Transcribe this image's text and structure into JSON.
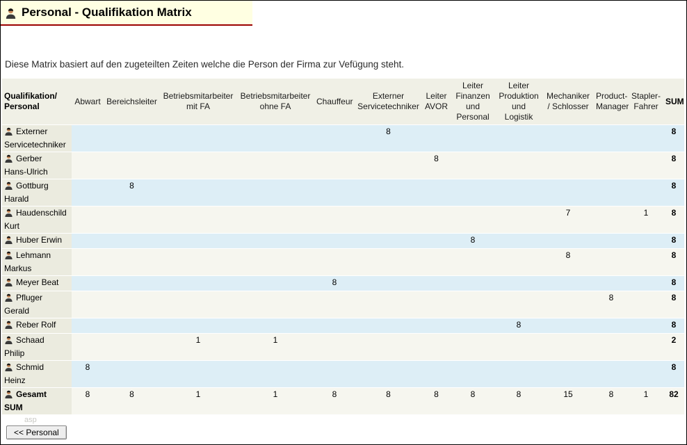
{
  "header": {
    "title": "Personal - Qualifikation Matrix"
  },
  "intro": {
    "text": "Diese Matrix basiert auf den zugeteilten Zeiten welche die Person der Firma zur Vefügung steht."
  },
  "table": {
    "corner_header": "Qualifikation/ Personal",
    "columns": [
      "Abwart",
      "Bereichsleiter",
      "Betriebsmitarbeiter mit FA",
      "Betriebsmitarbeiter ohne FA",
      "Chauffeur",
      "Externer Servicetechniker",
      "Leiter AVOR",
      "Leiter Finanzen und Personal",
      "Leiter Produktion und Logistik",
      "Mechaniker / Schlosser",
      "Product- Manager",
      "Stapler- Fahrer",
      "SUM"
    ],
    "rows": [
      {
        "name": "Externer\nServicetechniker",
        "values": [
          "",
          "",
          "",
          "",
          "",
          "8",
          "",
          "",
          "",
          "",
          "",
          "",
          "8"
        ]
      },
      {
        "name": "Gerber\nHans-Ulrich",
        "values": [
          "",
          "",
          "",
          "",
          "",
          "",
          "8",
          "",
          "",
          "",
          "",
          "",
          "8"
        ]
      },
      {
        "name": "Gottburg\nHarald",
        "values": [
          "",
          "8",
          "",
          "",
          "",
          "",
          "",
          "",
          "",
          "",
          "",
          "",
          "8"
        ]
      },
      {
        "name": "Haudenschild\nKurt",
        "values": [
          "",
          "",
          "",
          "",
          "",
          "",
          "",
          "",
          "",
          "7",
          "",
          "1",
          "8"
        ]
      },
      {
        "name": "Huber Erwin",
        "values": [
          "",
          "",
          "",
          "",
          "",
          "",
          "",
          "8",
          "",
          "",
          "",
          "",
          "8"
        ]
      },
      {
        "name": "Lehmann\nMarkus",
        "values": [
          "",
          "",
          "",
          "",
          "",
          "",
          "",
          "",
          "",
          "8",
          "",
          "",
          "8"
        ]
      },
      {
        "name": "Meyer Beat",
        "values": [
          "",
          "",
          "",
          "",
          "8",
          "",
          "",
          "",
          "",
          "",
          "",
          "",
          "8"
        ]
      },
      {
        "name": "Pfluger\nGerald",
        "values": [
          "",
          "",
          "",
          "",
          "",
          "",
          "",
          "",
          "",
          "",
          "8",
          "",
          "8"
        ]
      },
      {
        "name": "Reber Rolf",
        "values": [
          "",
          "",
          "",
          "",
          "",
          "",
          "",
          "",
          "8",
          "",
          "",
          "",
          "8"
        ]
      },
      {
        "name": "Schaad\nPhilip",
        "values": [
          "",
          "",
          "1",
          "1",
          "",
          "",
          "",
          "",
          "",
          "",
          "",
          "",
          "2"
        ]
      },
      {
        "name": "Schmid\nHeinz",
        "values": [
          "8",
          "",
          "",
          "",
          "",
          "",
          "",
          "",
          "",
          "",
          "",
          "",
          "8"
        ]
      },
      {
        "name": "Gesamt\nSUM",
        "values": [
          "8",
          "8",
          "1",
          "1",
          "8",
          "8",
          "8",
          "8",
          "8",
          "15",
          "8",
          "1",
          "82"
        ],
        "total": true
      }
    ]
  },
  "footer": {
    "back_button_label": "<< Personal",
    "watermark": "asp"
  }
}
